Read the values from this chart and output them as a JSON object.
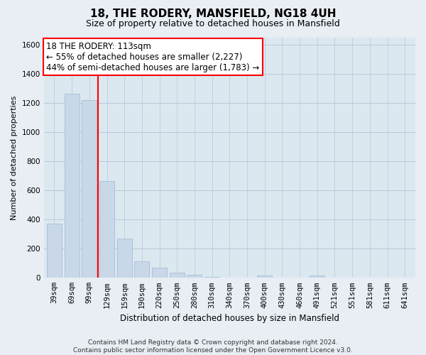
{
  "title": "18, THE RODERY, MANSFIELD, NG18 4UH",
  "subtitle": "Size of property relative to detached houses in Mansfield",
  "xlabel": "Distribution of detached houses by size in Mansfield",
  "ylabel": "Number of detached properties",
  "categories": [
    "39sqm",
    "69sqm",
    "99sqm",
    "129sqm",
    "159sqm",
    "190sqm",
    "220sqm",
    "250sqm",
    "280sqm",
    "310sqm",
    "340sqm",
    "370sqm",
    "400sqm",
    "430sqm",
    "460sqm",
    "491sqm",
    "521sqm",
    "551sqm",
    "581sqm",
    "611sqm",
    "641sqm"
  ],
  "values": [
    370,
    1265,
    1220,
    665,
    270,
    115,
    70,
    38,
    20,
    5,
    0,
    0,
    18,
    0,
    0,
    18,
    0,
    0,
    0,
    0,
    0
  ],
  "bar_color": "#c8d8e8",
  "bar_edge_color": "#a0b8d0",
  "vline_x": 2,
  "vline_color": "red",
  "ylim": [
    0,
    1650
  ],
  "yticks": [
    0,
    200,
    400,
    600,
    800,
    1000,
    1200,
    1400,
    1600
  ],
  "annotation_box_text_line1": "18 THE RODERY: 113sqm",
  "annotation_box_text_line2": "← 55% of detached houses are smaller (2,227)",
  "annotation_box_text_line3": "44% of semi-detached houses are larger (1,783) →",
  "footer_line1": "Contains HM Land Registry data © Crown copyright and database right 2024.",
  "footer_line2": "Contains public sector information licensed under the Open Government Licence v3.0.",
  "bg_color": "#e8eef4",
  "plot_bg_color": "#dce8f0",
  "grid_color": "#b8c8d8",
  "title_fontsize": 11,
  "subtitle_fontsize": 9,
  "annotation_fontsize": 8.5,
  "tick_fontsize": 7.5,
  "ylabel_fontsize": 8,
  "xlabel_fontsize": 8.5
}
